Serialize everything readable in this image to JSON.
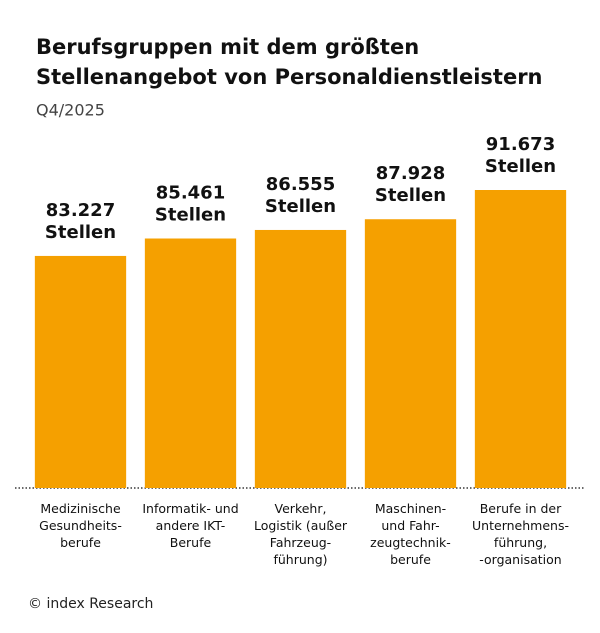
{
  "chart_data": {
    "type": "bar",
    "title": [
      "Berufsgruppen mit dem größten",
      "Stellenangebot von Personaldienstleistern"
    ],
    "subtitle": "Q4/2025",
    "categories": [
      "Medizinische\nGesundheits-\nberufe",
      "Informatik- und\nandere IKT-\nBerufe",
      "Verkehr,\nLogistik (außer\nFahrzeug-\nführung)",
      "Maschinen-\nund Fahr-\nzeugtechnik-\nberufe",
      "Berufe in der\nUnternehmens-\nführung,\n-organisation"
    ],
    "values": [
      83227,
      85461,
      86555,
      87928,
      91673
    ],
    "value_labels": [
      "83.227\nStellen",
      "85.461\nStellen",
      "86.555\nStellen",
      "87.928\nStellen",
      "91.673\nStellen"
    ],
    "color": "#f5a000",
    "ylim": [
      53500,
      100000
    ],
    "source": "© index Research"
  }
}
